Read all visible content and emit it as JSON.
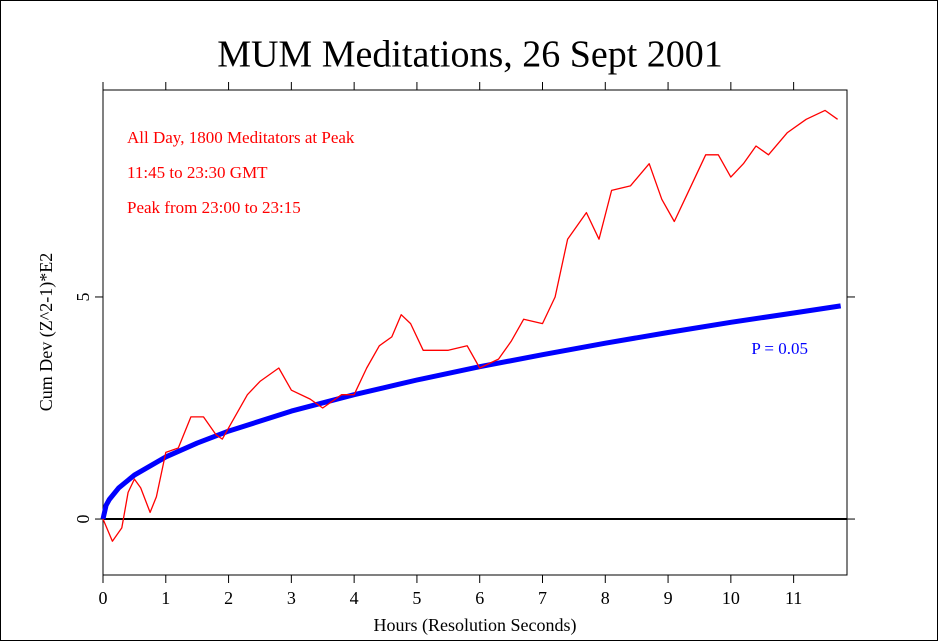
{
  "chart_data": {
    "type": "line",
    "title": "MUM Meditations, 26 Sept 2001",
    "xlabel": "Hours (Resolution Seconds)",
    "ylabel": "Cum Dev (Z^2-1)*E2",
    "annotations": [
      "All Day, 1800 Meditators at Peak",
      "11:45 to 23:30 GMT",
      "Peak from 23:00 to 23:15"
    ],
    "hline": 0,
    "xlim": [
      0,
      11.85
    ],
    "ylim": [
      -1.26,
      9.66
    ],
    "xticks": [
      0,
      1,
      2,
      3,
      4,
      5,
      6,
      7,
      8,
      9,
      10,
      11
    ],
    "yticks": [
      0,
      5
    ],
    "series": [
      {
        "name": "Cum Dev",
        "color": "#ff0000",
        "x": [
          0,
          0.15,
          0.3,
          0.4,
          0.5,
          0.6,
          0.75,
          0.85,
          1.0,
          1.2,
          1.4,
          1.6,
          1.8,
          1.9,
          2.1,
          2.3,
          2.5,
          2.8,
          3.0,
          3.3,
          3.5,
          3.8,
          4.0,
          4.2,
          4.4,
          4.6,
          4.75,
          4.9,
          5.1,
          5.5,
          5.8,
          6.0,
          6.3,
          6.5,
          6.7,
          7.0,
          7.2,
          7.4,
          7.7,
          7.9,
          8.1,
          8.4,
          8.7,
          8.9,
          9.1,
          9.3,
          9.6,
          9.8,
          10.0,
          10.2,
          10.4,
          10.6,
          10.9,
          11.2,
          11.5,
          11.7
        ],
        "values": [
          0,
          -0.5,
          -0.2,
          0.6,
          0.9,
          0.7,
          0.15,
          0.5,
          1.5,
          1.6,
          2.3,
          2.3,
          1.9,
          1.8,
          2.3,
          2.8,
          3.1,
          3.4,
          2.9,
          2.7,
          2.5,
          2.8,
          2.8,
          3.4,
          3.9,
          4.1,
          4.6,
          4.4,
          3.8,
          3.8,
          3.9,
          3.4,
          3.6,
          4.0,
          4.5,
          4.4,
          5.0,
          6.3,
          6.9,
          6.3,
          7.4,
          7.5,
          8.0,
          7.2,
          6.7,
          7.3,
          8.2,
          8.2,
          7.7,
          8.0,
          8.4,
          8.2,
          8.7,
          9.0,
          9.2,
          9.0
        ]
      },
      {
        "name": "P = 0.05",
        "color": "#0000ff",
        "x": [
          0,
          0.05,
          0.1,
          0.25,
          0.5,
          1,
          1.5,
          2,
          3,
          4,
          5,
          6,
          7,
          8,
          9,
          10,
          11,
          11.75
        ],
        "values": [
          0,
          0.31,
          0.44,
          0.7,
          0.99,
          1.4,
          1.71,
          1.98,
          2.43,
          2.8,
          3.13,
          3.43,
          3.7,
          3.96,
          4.2,
          4.43,
          4.64,
          4.8
        ]
      }
    ]
  }
}
